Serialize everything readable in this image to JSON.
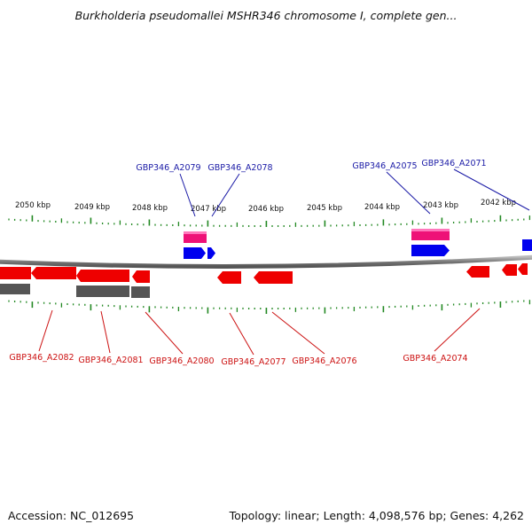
{
  "title": "Burkholderia pseudomallei MSHR346 chromosome I, complete gen...",
  "footer": {
    "accession": "Accession: NC_012695",
    "topology": "Topology: linear; Length: 4,098,576 bp; Genes: 4,262"
  },
  "colors": {
    "forward_cds": "#0000ee",
    "reverse_cds": "#ee0000",
    "gene_forward": "#ee1177",
    "gene_reverse": "#555555",
    "label_forward": "#1a1aa6",
    "label_reverse": "#cc1111",
    "backbone": "#777777",
    "ticks": "#228822"
  },
  "scale_labels": [
    "2050 kbp",
    "2049 kbp",
    "2048 kbp",
    "2047 kbp",
    "2046 kbp",
    "2045 kbp",
    "2044 kbp",
    "2043 kbp",
    "2042 kbp"
  ],
  "forward_labels": [
    "GBP346_A2079",
    "GBP346_A2078",
    "GBP346_A2075",
    "GBP346_A2071"
  ],
  "reverse_labels": [
    "GBP346_A2082",
    "GBP346_A2081",
    "GBP346_A2080",
    "GBP346_A2077",
    "GBP346_A2076",
    "GBP346_A2074"
  ]
}
